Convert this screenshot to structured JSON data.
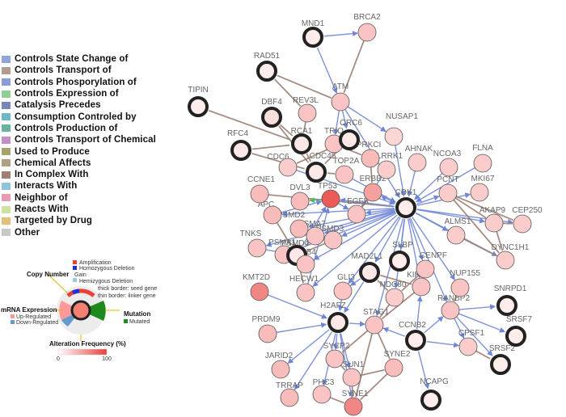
{
  "legend": {
    "items": [
      {
        "label": "Controls State Change of",
        "color": "#8fa5d9"
      },
      {
        "label": "Controls Transport of",
        "color": "#b39c8d"
      },
      {
        "label": "Controls Phosporylation of",
        "color": "#8c9bd9"
      },
      {
        "label": "Controls Expression of",
        "color": "#8fcf94"
      },
      {
        "label": "Catalysis Precedes",
        "color": "#7b86b8"
      },
      {
        "label": "Consumption Controled by",
        "color": "#6fb7c7"
      },
      {
        "label": "Controls Production of",
        "color": "#68b3a0"
      },
      {
        "label": "Controls Transport of Chemical",
        "color": "#c58fc5"
      },
      {
        "label": "Used to Produce",
        "color": "#a4a56b"
      },
      {
        "label": "Chemical Affects",
        "color": "#b1a084"
      },
      {
        "label": "In Complex With",
        "color": "#9d7f74"
      },
      {
        "label": "Interacts With",
        "color": "#8fc4d9"
      },
      {
        "label": "Neighbor of",
        "color": "#e89ab2"
      },
      {
        "label": "Reacts With",
        "color": "#cfe3a1"
      },
      {
        "label": "Targeted by Drug",
        "color": "#e3c07a"
      },
      {
        "label": "Other",
        "color": "#c8c8c8"
      }
    ]
  },
  "node_key": {
    "copy_number_title": "Copy Number",
    "copy_number_items": [
      "Amplification",
      "Homozygous Deletion",
      "Gain",
      "Hemizygous Deletion"
    ],
    "border_notes": [
      "thick border: seed gene",
      "thin border: linker gene"
    ],
    "mrna_title": "mRNA Expression",
    "mrna_items": [
      "Up-Regulated",
      "Down-Regulated"
    ],
    "mutation_title": "Mutation",
    "mutation_items": [
      "Mutated"
    ],
    "alteration_title": "Alteration Frequency (%)",
    "scale_min": "0",
    "scale_max": "100",
    "colors": {
      "amplification": "#e8413c",
      "homdel": "#1b33d6",
      "hemdel": "#9ec8dc",
      "up": "#ff9999",
      "down": "#6699cc",
      "mutated": "#1e8a1e"
    }
  },
  "network": {
    "nodes": [
      {
        "id": "MND1",
        "label": "MND1",
        "seed": true,
        "freq": 0.02
      },
      {
        "id": "BRCA2",
        "label": "BRCA2",
        "seed": false,
        "freq": 0.25
      },
      {
        "id": "RAD51",
        "label": "RAD51",
        "seed": true,
        "freq": 0.02
      },
      {
        "id": "ATM",
        "label": "ATM",
        "seed": false,
        "freq": 0.25
      },
      {
        "id": "REV3L",
        "label": "REV3L",
        "seed": false,
        "freq": 0.25
      },
      {
        "id": "TIPIN",
        "label": "TIPIN",
        "seed": true,
        "freq": 0.02
      },
      {
        "id": "DBF4",
        "label": "DBF4",
        "seed": true,
        "freq": 0.1
      },
      {
        "id": "RCA1",
        "label": "RCA1",
        "seed": true,
        "freq": 0.05
      },
      {
        "id": "TRIO",
        "label": "TRIO",
        "seed": false,
        "freq": 0.25
      },
      {
        "id": "ORC6",
        "label": "ORC6",
        "seed": true,
        "freq": 0.05
      },
      {
        "id": "NUSAP1",
        "label": "NUSAP1",
        "seed": false,
        "freq": 0.15
      },
      {
        "id": "RFC4",
        "label": "RFC4",
        "seed": true,
        "freq": 0.05
      },
      {
        "id": "CDC6",
        "label": "CDC6",
        "seed": false,
        "freq": 0.2
      },
      {
        "id": "CDC45",
        "label": "CDC45",
        "seed": true,
        "freq": 0.05
      },
      {
        "id": "PRKCI",
        "label": "PRKCI",
        "seed": false,
        "freq": 0.3
      },
      {
        "id": "LRRK1",
        "label": "LRRK1",
        "seed": false,
        "freq": 0.2
      },
      {
        "id": "AHNAK",
        "label": "AHNAK",
        "seed": false,
        "freq": 0.2
      },
      {
        "id": "NCOA3",
        "label": "NCOA3",
        "seed": false,
        "freq": 0.2
      },
      {
        "id": "FLNA",
        "label": "FLNA",
        "seed": false,
        "freq": 0.2
      },
      {
        "id": "TOP2A",
        "label": "TOP2A",
        "seed": false,
        "freq": 0.25
      },
      {
        "id": "CCNE1",
        "label": "CCNE1",
        "seed": false,
        "freq": 0.3
      },
      {
        "id": "DVL3",
        "label": "DVL3",
        "seed": false,
        "freq": 0.3
      },
      {
        "id": "TP53",
        "label": "TP53",
        "seed": false,
        "freq": 0.85
      },
      {
        "id": "ERBB2",
        "label": "ERBB2",
        "seed": false,
        "freq": 0.45
      },
      {
        "id": "EGFR",
        "label": "EGFR",
        "seed": false,
        "freq": 0.25
      },
      {
        "id": "CDK1",
        "label": "CDK1",
        "seed": true,
        "freq": 0.02
      },
      {
        "id": "PCNT",
        "label": "PCNT",
        "seed": false,
        "freq": 0.2
      },
      {
        "id": "MKI67",
        "label": "MKI67",
        "seed": false,
        "freq": 0.2
      },
      {
        "id": "AKAP9",
        "label": "AKAP9",
        "seed": false,
        "freq": 0.2
      },
      {
        "id": "CEP250",
        "label": "CEP250",
        "seed": false,
        "freq": 0.2
      },
      {
        "id": "APC",
        "label": "APC",
        "seed": false,
        "freq": 0.3
      },
      {
        "id": "PSMD2",
        "label": "PSMD2",
        "seed": false,
        "freq": 0.3
      },
      {
        "id": "PSMA7",
        "label": "PSMA7",
        "seed": false,
        "freq": 0.25
      },
      {
        "id": "PSMD3",
        "label": "PSMD3",
        "seed": false,
        "freq": 0.25
      },
      {
        "id": "TNKS",
        "label": "TNKS",
        "seed": false,
        "freq": 0.25
      },
      {
        "id": "PSMA1",
        "label": "PSMA1",
        "seed": false,
        "freq": 0.25
      },
      {
        "id": "PSMD4",
        "label": "PSMD4",
        "seed": true,
        "freq": 0.05
      },
      {
        "id": "PSMB4",
        "label": "PSMB4",
        "seed": false,
        "freq": 0.25
      },
      {
        "id": "ALMS1",
        "label": "ALMS1",
        "seed": false,
        "freq": 0.2
      },
      {
        "id": "DYNC1H1",
        "label": "DYNC1H1",
        "seed": false,
        "freq": 0.2
      },
      {
        "id": "SLBP",
        "label": "SLBP",
        "seed": true,
        "freq": 0.02
      },
      {
        "id": "MAD2L1",
        "label": "MAD2L1",
        "seed": true,
        "freq": 0.05
      },
      {
        "id": "CENPF",
        "label": "CENPF",
        "seed": false,
        "freq": 0.25
      },
      {
        "id": "KIF2B",
        "label": "KIF2B",
        "seed": false,
        "freq": 0.25
      },
      {
        "id": "NUP155",
        "label": "NUP155",
        "seed": false,
        "freq": 0.25
      },
      {
        "id": "KMT2D",
        "label": "KMT2D",
        "seed": false,
        "freq": 0.6
      },
      {
        "id": "HECW1",
        "label": "HECW1",
        "seed": false,
        "freq": 0.25
      },
      {
        "id": "GLI3",
        "label": "GLI3",
        "seed": false,
        "freq": 0.25
      },
      {
        "id": "NDC80",
        "label": "NDC80",
        "seed": false,
        "freq": 0.2
      },
      {
        "id": "SNRPD1",
        "label": "SNRPD1",
        "seed": true,
        "freq": 0.02
      },
      {
        "id": "RANBP2",
        "label": "RANBP2",
        "seed": false,
        "freq": 0.25
      },
      {
        "id": "SRSF7",
        "label": "SRSF7",
        "seed": true,
        "freq": 0.02
      },
      {
        "id": "PRDM9",
        "label": "PRDM9",
        "seed": false,
        "freq": 0.3
      },
      {
        "id": "H2AFZ",
        "label": "H2AFZ",
        "seed": true,
        "freq": 0.05
      },
      {
        "id": "STAG1",
        "label": "STAG1",
        "seed": false,
        "freq": 0.25
      },
      {
        "id": "CCNB2",
        "label": "CCNB2",
        "seed": true,
        "freq": 0.02
      },
      {
        "id": "CPSF1",
        "label": "CPSF1",
        "seed": false,
        "freq": 0.2
      },
      {
        "id": "SRSF2",
        "label": "SRSF2",
        "seed": true,
        "freq": 0.02
      },
      {
        "id": "JARID2",
        "label": "JARID2",
        "seed": false,
        "freq": 0.3
      },
      {
        "id": "SYCP2",
        "label": "SYCP2",
        "seed": false,
        "freq": 0.25
      },
      {
        "id": "SUN1",
        "label": "SUN1",
        "seed": false,
        "freq": 0.25
      },
      {
        "id": "SYNE2",
        "label": "SYNE2",
        "seed": false,
        "freq": 0.3
      },
      {
        "id": "PHC3",
        "label": "PHC3",
        "seed": false,
        "freq": 0.25
      },
      {
        "id": "NCAPG",
        "label": "NCAPG",
        "seed": true,
        "freq": 0.02
      },
      {
        "id": "TRRAP",
        "label": "TRRAP",
        "seed": false,
        "freq": 0.3
      },
      {
        "id": "SYNE1",
        "label": "SYNE1",
        "seed": false,
        "freq": 0.6
      }
    ],
    "edges": [
      {
        "s": "MND1",
        "t": "BRCA2",
        "type": "state"
      },
      {
        "s": "BRCA2",
        "t": "ATM",
        "type": "complex"
      },
      {
        "s": "MND1",
        "t": "ATM",
        "type": "state"
      },
      {
        "s": "RAD51",
        "t": "ATM",
        "type": "complex"
      },
      {
        "s": "RAD51",
        "t": "REV3L",
        "type": "complex"
      },
      {
        "s": "ATM",
        "t": "CDK1",
        "type": "state"
      },
      {
        "s": "ATM",
        "t": "NUSAP1",
        "type": "state"
      },
      {
        "s": "ATM",
        "t": "TRIO",
        "type": "state"
      },
      {
        "s": "ATM",
        "t": "ORC6",
        "type": "state"
      },
      {
        "s": "REV3L",
        "t": "RCA1",
        "type": "complex"
      },
      {
        "s": "TIPIN",
        "t": "RCA1",
        "type": "complex"
      },
      {
        "s": "DBF4",
        "t": "RCA1",
        "type": "complex"
      },
      {
        "s": "DBF4",
        "t": "CDC45",
        "type": "complex"
      },
      {
        "s": "RCA1",
        "t": "CDC45",
        "type": "complex"
      },
      {
        "s": "RFC4",
        "t": "RCA1",
        "type": "complex"
      },
      {
        "s": "RFC4",
        "t": "CDC45",
        "type": "complex"
      },
      {
        "s": "ORC6",
        "t": "CDC45",
        "type": "complex"
      },
      {
        "s": "ORC6",
        "t": "CDC6",
        "type": "complex"
      },
      {
        "s": "CDC6",
        "t": "CDK1",
        "type": "state"
      },
      {
        "s": "CDC45",
        "t": "TOP2A",
        "type": "complex"
      },
      {
        "s": "TRIO",
        "t": "PRKCI",
        "type": "complex"
      },
      {
        "s": "NUSAP1",
        "t": "CDK1",
        "type": "state"
      },
      {
        "s": "PRKCI",
        "t": "ERBB2",
        "type": "complex"
      },
      {
        "s": "LRRK1",
        "t": "EGFR",
        "type": "state"
      },
      {
        "s": "AHNAK",
        "t": "CDK1",
        "type": "state"
      },
      {
        "s": "NCOA3",
        "t": "CDK1",
        "type": "state"
      },
      {
        "s": "FLNA",
        "t": "CDK1",
        "type": "state"
      },
      {
        "s": "TOP2A",
        "t": "CDK1",
        "type": "state"
      },
      {
        "s": "CCNE1",
        "t": "CDK1",
        "type": "complex"
      },
      {
        "s": "CDK1",
        "t": "TP53",
        "type": "state"
      },
      {
        "s": "CDK1",
        "t": "EGFR",
        "type": "state"
      },
      {
        "s": "CDK1",
        "t": "ERBB2",
        "type": "state"
      },
      {
        "s": "CDK1",
        "t": "PCNT",
        "type": "state"
      },
      {
        "s": "CDK1",
        "t": "MKI67",
        "type": "state"
      },
      {
        "s": "CDK1",
        "t": "AKAP9",
        "type": "state"
      },
      {
        "s": "CDK1",
        "t": "CEP250",
        "type": "state"
      },
      {
        "s": "CDK1",
        "t": "ALMS1",
        "type": "state"
      },
      {
        "s": "CDK1",
        "t": "DYNC1H1",
        "type": "state"
      },
      {
        "s": "CDK1",
        "t": "APC",
        "type": "state"
      },
      {
        "s": "CDK1",
        "t": "PSMD2",
        "type": "state"
      },
      {
        "s": "CDK1",
        "t": "PSMA7",
        "type": "state"
      },
      {
        "s": "CDK1",
        "t": "PSMD3",
        "type": "state"
      },
      {
        "s": "CDK1",
        "t": "TNKS",
        "type": "state"
      },
      {
        "s": "CDK1",
        "t": "PSMA1",
        "type": "state"
      },
      {
        "s": "CDK1",
        "t": "PSMB4",
        "type": "state"
      },
      {
        "s": "CDK1",
        "t": "MAD2L1",
        "type": "state"
      },
      {
        "s": "CDK1",
        "t": "CENPF",
        "type": "state"
      },
      {
        "s": "CDK1",
        "t": "KIF2B",
        "type": "state"
      },
      {
        "s": "CDK1",
        "t": "NUP155",
        "type": "state"
      },
      {
        "s": "CDK1",
        "t": "NDC80",
        "type": "state"
      },
      {
        "s": "CDK1",
        "t": "RANBP2",
        "type": "state"
      },
      {
        "s": "CDK1",
        "t": "STAG1",
        "type": "state"
      },
      {
        "s": "CDK1",
        "t": "GLI3",
        "type": "state"
      },
      {
        "s": "CDK1",
        "t": "HECW1",
        "type": "state"
      },
      {
        "s": "CDK1",
        "t": "SLBP",
        "type": "state"
      },
      {
        "s": "PCNT",
        "t": "AKAP9",
        "type": "complex"
      },
      {
        "s": "AKAP9",
        "t": "CEP250",
        "type": "complex"
      },
      {
        "s": "AKAP9",
        "t": "DYNC1H1",
        "type": "complex"
      },
      {
        "s": "PCNT",
        "t": "DYNC1H1",
        "type": "complex"
      },
      {
        "s": "ALMS1",
        "t": "DYNC1H1",
        "type": "complex"
      },
      {
        "s": "PCNT",
        "t": "CEP250",
        "type": "complex"
      },
      {
        "s": "TP53",
        "t": "DVL3",
        "type": "expression"
      },
      {
        "s": "TP53",
        "t": "EGFR",
        "type": "state"
      },
      {
        "s": "EGFR",
        "t": "ERBB2",
        "type": "complex"
      },
      {
        "s": "PSMD2",
        "t": "PSMA7",
        "type": "complex"
      },
      {
        "s": "PSMD2",
        "t": "PSMD3",
        "type": "complex"
      },
      {
        "s": "PSMA7",
        "t": "PSMD4",
        "type": "complex"
      },
      {
        "s": "PSMD3",
        "t": "PSMD4",
        "type": "complex"
      },
      {
        "s": "PSMA1",
        "t": "PSMD4",
        "type": "complex"
      },
      {
        "s": "PSMB4",
        "t": "PSMD4",
        "type": "complex"
      },
      {
        "s": "PSMA1",
        "t": "PSMB4",
        "type": "complex"
      },
      {
        "s": "PSMD4",
        "t": "HECW1",
        "type": "complex"
      },
      {
        "s": "APC",
        "t": "PSMD4",
        "type": "complex"
      },
      {
        "s": "TNKS",
        "t": "PSMD4",
        "type": "state"
      },
      {
        "s": "PSMD4",
        "t": "TP53",
        "type": "state"
      },
      {
        "s": "APC",
        "t": "TP53",
        "type": "state"
      },
      {
        "s": "MAD2L1",
        "t": "NDC80",
        "type": "complex"
      },
      {
        "s": "MAD2L1",
        "t": "H2AFZ",
        "type": "state"
      },
      {
        "s": "MAD2L1",
        "t": "KIF2B",
        "type": "complex"
      },
      {
        "s": "MAD2L1",
        "t": "GLI3",
        "type": "state"
      },
      {
        "s": "CENPF",
        "t": "NDC80",
        "type": "complex"
      },
      {
        "s": "NDC80",
        "t": "STAG1",
        "type": "complex"
      },
      {
        "s": "NUP155",
        "t": "RANBP2",
        "type": "complex"
      },
      {
        "s": "RANBP2",
        "t": "SNRPD1",
        "type": "state"
      },
      {
        "s": "RANBP2",
        "t": "SRSF7",
        "type": "state"
      },
      {
        "s": "RANBP2",
        "t": "SRSF2",
        "type": "state"
      },
      {
        "s": "RANBP2",
        "t": "CPSF1",
        "type": "state"
      },
      {
        "s": "CPSF1",
        "t": "SRSF2",
        "type": "complex"
      },
      {
        "s": "CCNB2",
        "t": "RANBP2",
        "type": "state"
      },
      {
        "s": "CCNB2",
        "t": "CPSF1",
        "type": "state"
      },
      {
        "s": "CCNB2",
        "t": "KIF2B",
        "type": "state"
      },
      {
        "s": "CCNB2",
        "t": "NCAPG",
        "type": "state"
      },
      {
        "s": "CCNB2",
        "t": "STAG1",
        "type": "state"
      },
      {
        "s": "KMT2D",
        "t": "H2AFZ",
        "type": "state"
      },
      {
        "s": "PRDM9",
        "t": "H2AFZ",
        "type": "state"
      },
      {
        "s": "H2AFZ",
        "t": "JARID2",
        "type": "state"
      },
      {
        "s": "H2AFZ",
        "t": "SYCP2",
        "type": "state"
      },
      {
        "s": "H2AFZ",
        "t": "TRRAP",
        "type": "state"
      },
      {
        "s": "H2AFZ",
        "t": "PHC3",
        "type": "state"
      },
      {
        "s": "H2AFZ",
        "t": "STAG1",
        "type": "state"
      },
      {
        "s": "H2AFZ",
        "t": "SUN1",
        "type": "state"
      },
      {
        "s": "H2AFZ",
        "t": "SYNE1",
        "type": "state"
      },
      {
        "s": "SYCP2",
        "t": "SUN1",
        "type": "complex"
      },
      {
        "s": "SUN1",
        "t": "SYNE2",
        "type": "complex"
      },
      {
        "s": "SUN1",
        "t": "SYNE1",
        "type": "complex"
      },
      {
        "s": "SYNE2",
        "t": "SYNE1",
        "type": "complex"
      },
      {
        "s": "STAG1",
        "t": "SYCP2",
        "type": "complex"
      },
      {
        "s": "STAG1",
        "t": "SYNE2",
        "type": "complex"
      },
      {
        "s": "STAG1",
        "t": "SYNE1",
        "type": "complex"
      },
      {
        "s": "PHC3",
        "t": "SYNE1",
        "type": "complex"
      },
      {
        "s": "KIF2B",
        "t": "STAG1",
        "type": "complex"
      },
      {
        "s": "HECW1",
        "t": "TP53",
        "type": "state"
      },
      {
        "s": "GLI3",
        "t": "H2AFZ",
        "type": "state"
      }
    ]
  }
}
